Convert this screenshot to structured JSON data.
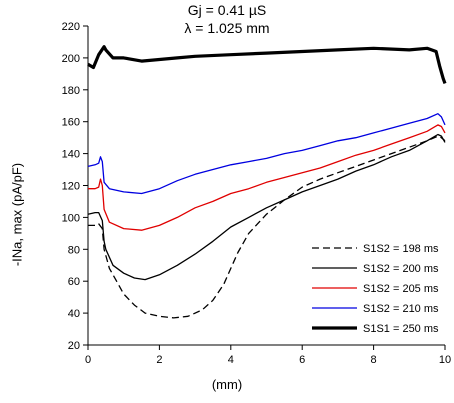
{
  "chart_data": {
    "type": "line",
    "title_lines": [
      "Gj = 0.41 µS",
      "λ = 1.025 mm"
    ],
    "xlabel": "(mm)",
    "ylabel": "-INa, max (pA/pF)",
    "xlim": [
      0,
      10
    ],
    "ylim": [
      20,
      220
    ],
    "xticks": [
      0,
      2,
      4,
      6,
      8,
      10
    ],
    "yticks": [
      20,
      40,
      60,
      80,
      100,
      120,
      140,
      160,
      180,
      200,
      220
    ],
    "grid": false,
    "legend_position": "bottom-right",
    "series": [
      {
        "name": "S1S2 = 198 ms",
        "color": "#000000",
        "style": "dashed",
        "x": [
          0,
          0.2,
          0.3,
          0.4,
          0.45,
          0.6,
          0.8,
          1.0,
          1.3,
          1.6,
          2.0,
          2.4,
          2.8,
          3.2,
          3.5,
          3.8,
          4.0,
          4.2,
          4.5,
          5.0,
          5.5,
          6.0,
          6.5,
          7.0,
          7.5,
          8.0,
          8.5,
          9.0,
          9.5,
          9.8,
          9.9,
          10.0
        ],
        "y": [
          95,
          95,
          96,
          93,
          80,
          68,
          60,
          52,
          45,
          40,
          38,
          37,
          38,
          42,
          48,
          58,
          68,
          78,
          90,
          102,
          111,
          119,
          124,
          128,
          132,
          136,
          140,
          144,
          148,
          151,
          150,
          148
        ]
      },
      {
        "name": "S1S2 = 200 ms",
        "color": "#000000",
        "style": "solid",
        "x": [
          0,
          0.2,
          0.3,
          0.4,
          0.45,
          0.5,
          0.7,
          1.0,
          1.3,
          1.6,
          2.0,
          2.5,
          3.0,
          3.5,
          4.0,
          4.5,
          5.0,
          5.5,
          6.0,
          6.5,
          7.0,
          7.5,
          8.0,
          8.5,
          9.0,
          9.5,
          9.8,
          9.9,
          10.0
        ],
        "y": [
          102,
          103,
          103,
          98,
          85,
          80,
          70,
          65,
          62,
          61,
          64,
          70,
          77,
          85,
          94,
          100,
          106,
          111,
          116,
          120,
          124,
          129,
          133,
          138,
          142,
          148,
          152,
          151,
          147
        ]
      },
      {
        "name": "S1S2 = 205 ms",
        "color": "#e00000",
        "style": "solid",
        "x": [
          0,
          0.2,
          0.3,
          0.35,
          0.4,
          0.45,
          0.6,
          1.0,
          1.5,
          2.0,
          2.5,
          3.0,
          3.5,
          4.0,
          4.5,
          5.0,
          5.5,
          6.0,
          6.5,
          7.0,
          7.5,
          8.0,
          8.5,
          9.0,
          9.5,
          9.8,
          9.9,
          10.0
        ],
        "y": [
          118,
          118,
          119,
          124,
          120,
          105,
          97,
          93,
          92,
          95,
          100,
          106,
          110,
          115,
          118,
          122,
          125,
          128,
          131,
          135,
          139,
          142,
          146,
          150,
          154,
          158,
          157,
          153
        ]
      },
      {
        "name": "S1S2 = 210 ms",
        "color": "#0000e0",
        "style": "solid",
        "x": [
          0,
          0.2,
          0.3,
          0.35,
          0.4,
          0.45,
          0.6,
          1.0,
          1.5,
          2.0,
          2.5,
          3.0,
          3.5,
          4.0,
          4.5,
          5.0,
          5.5,
          6.0,
          6.5,
          7.0,
          7.5,
          8.0,
          8.5,
          9.0,
          9.5,
          9.8,
          9.9,
          10.0
        ],
        "y": [
          132,
          133,
          134,
          138,
          135,
          122,
          118,
          116,
          115,
          118,
          123,
          127,
          130,
          133,
          135,
          137,
          140,
          142,
          145,
          148,
          150,
          153,
          156,
          159,
          162,
          165,
          163,
          158
        ]
      },
      {
        "name": "S1S1 = 250 ms",
        "color": "#000000",
        "style": "bold",
        "x": [
          0,
          0.15,
          0.3,
          0.45,
          0.5,
          0.7,
          1.0,
          1.5,
          2.0,
          2.5,
          3.0,
          4.0,
          5.0,
          6.0,
          7.0,
          8.0,
          9.0,
          9.5,
          9.75,
          9.85,
          9.95,
          10.0
        ],
        "y": [
          196,
          194,
          202,
          207,
          205,
          200,
          200,
          198,
          199,
          200,
          201,
          202,
          203,
          204,
          205,
          206,
          205,
          206,
          204,
          195,
          187,
          184
        ]
      }
    ]
  }
}
